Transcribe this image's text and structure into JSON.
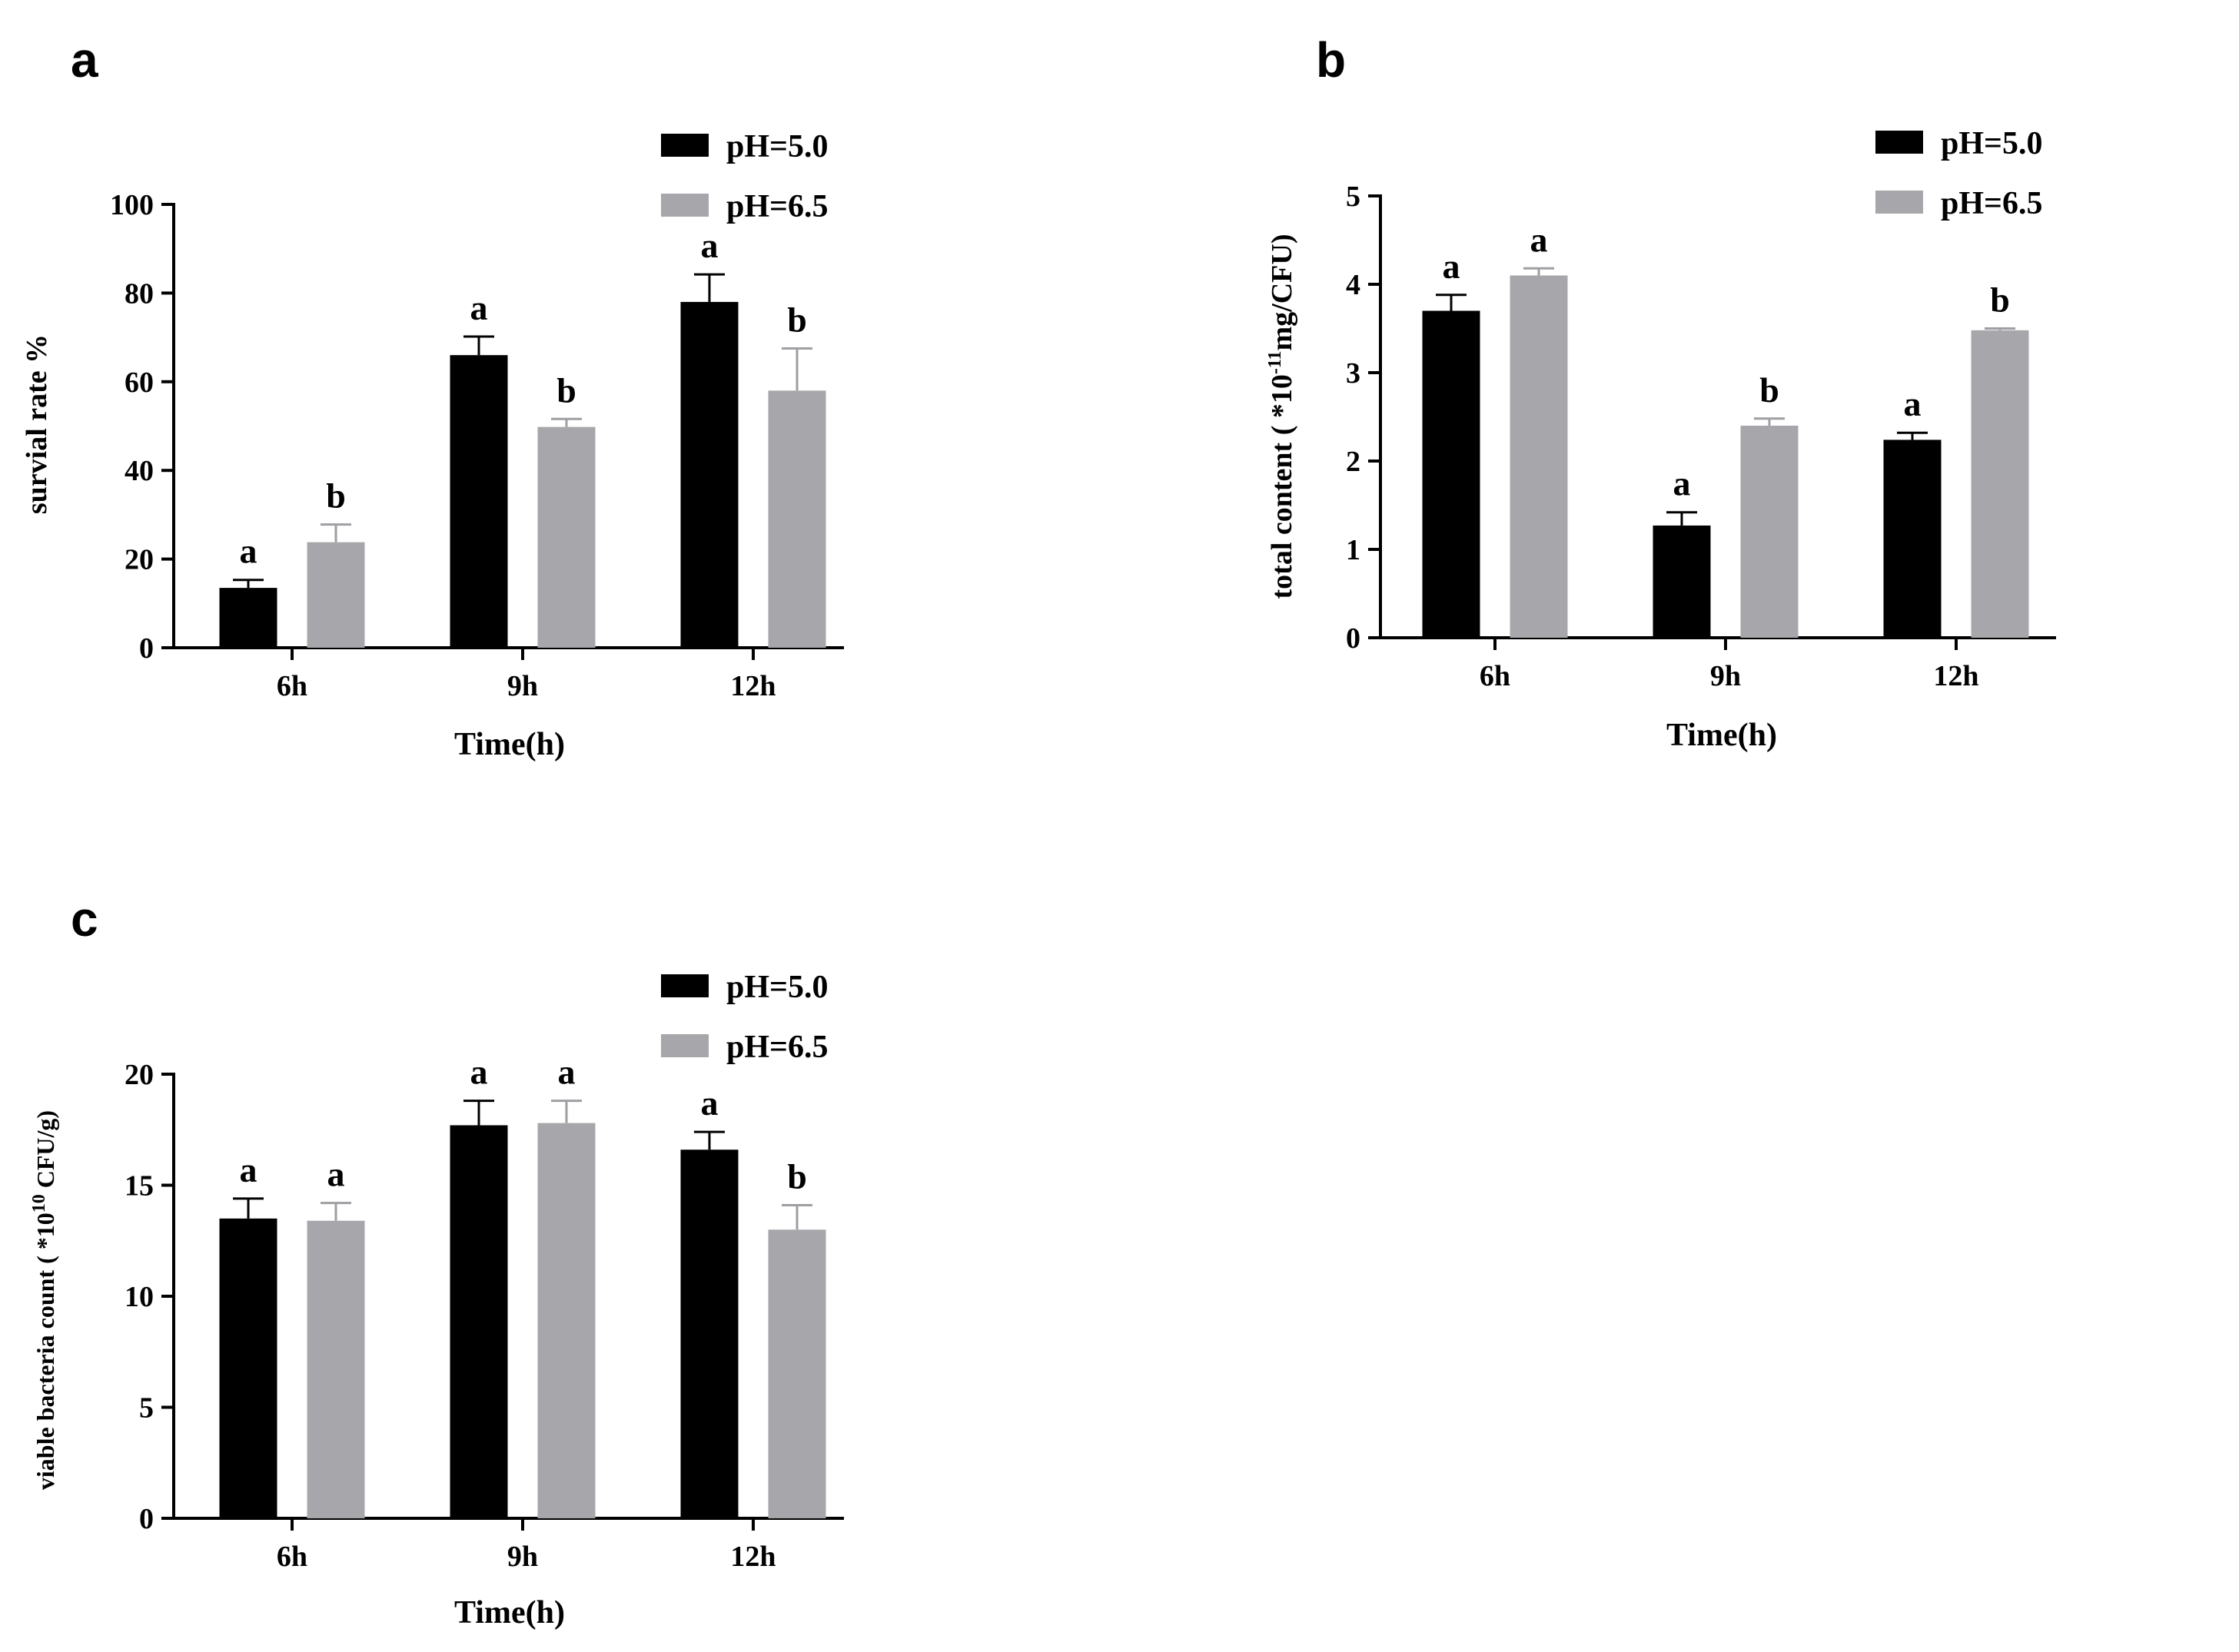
{
  "colors": {
    "series1": "#000000",
    "series2": "#a7a7ab",
    "error_grey": "#9e9ea3"
  },
  "chart_data": [
    {
      "panel": "a",
      "type": "bar",
      "title": "",
      "xlabel": "Time(h)",
      "ylabel": "survial rate %",
      "categories": [
        "6h",
        "9h",
        "12h"
      ],
      "ylim": [
        0,
        100
      ],
      "yticks": [
        0,
        20,
        40,
        60,
        80,
        100
      ],
      "legend": [
        "pH=5.0",
        "pH=6.5"
      ],
      "series": [
        {
          "name": "pH=5.0",
          "values": [
            13.5,
            66,
            78
          ],
          "errors": [
            1.8,
            4.2,
            6.2
          ],
          "letters": [
            "a",
            "a",
            "a"
          ]
        },
        {
          "name": "pH=6.5",
          "values": [
            23.8,
            49.8,
            58
          ],
          "errors": [
            4,
            1.8,
            9.5
          ],
          "letters": [
            "b",
            "b",
            "b"
          ]
        }
      ]
    },
    {
      "panel": "b",
      "type": "bar",
      "title": "",
      "xlabel": "Time(h)",
      "ylabel_prefix": "total content ( *10",
      "ylabel_sup": "-11",
      "ylabel_suffix": "mg/CFU)",
      "categories": [
        "6h",
        "9h",
        "12h"
      ],
      "ylim": [
        0,
        5
      ],
      "yticks": [
        0,
        1,
        2,
        3,
        4,
        5
      ],
      "legend": [
        "pH=5.0",
        "pH=6.5"
      ],
      "series": [
        {
          "name": "pH=5.0",
          "values": [
            3.7,
            1.27,
            2.24
          ],
          "errors": [
            0.18,
            0.15,
            0.08
          ],
          "letters": [
            "a",
            "a",
            "a"
          ]
        },
        {
          "name": "pH=6.5",
          "values": [
            4.1,
            2.4,
            3.48
          ],
          "errors": [
            0.08,
            0.08,
            0.02
          ],
          "letters": [
            "a",
            "b",
            "b"
          ]
        }
      ]
    },
    {
      "panel": "c",
      "type": "bar",
      "title": "",
      "xlabel": "Time(h)",
      "ylabel_prefix": "viable bacteria count ( *10",
      "ylabel_sup": "10",
      "ylabel_suffix": " CFU/g)",
      "categories": [
        "6h",
        "9h",
        "12h"
      ],
      "ylim": [
        0,
        20
      ],
      "yticks": [
        0,
        5,
        10,
        15,
        20
      ],
      "legend": [
        "pH=5.0",
        "pH=6.5"
      ],
      "series": [
        {
          "name": "pH=5.0",
          "values": [
            13.5,
            17.7,
            16.6
          ],
          "errors": [
            0.9,
            1.1,
            0.8
          ],
          "letters": [
            "a",
            "a",
            "a"
          ]
        },
        {
          "name": "pH=6.5",
          "values": [
            13.4,
            17.8,
            13.0
          ],
          "errors": [
            0.8,
            1.0,
            1.1
          ],
          "letters": [
            "a",
            "a",
            "b"
          ]
        }
      ]
    }
  ]
}
